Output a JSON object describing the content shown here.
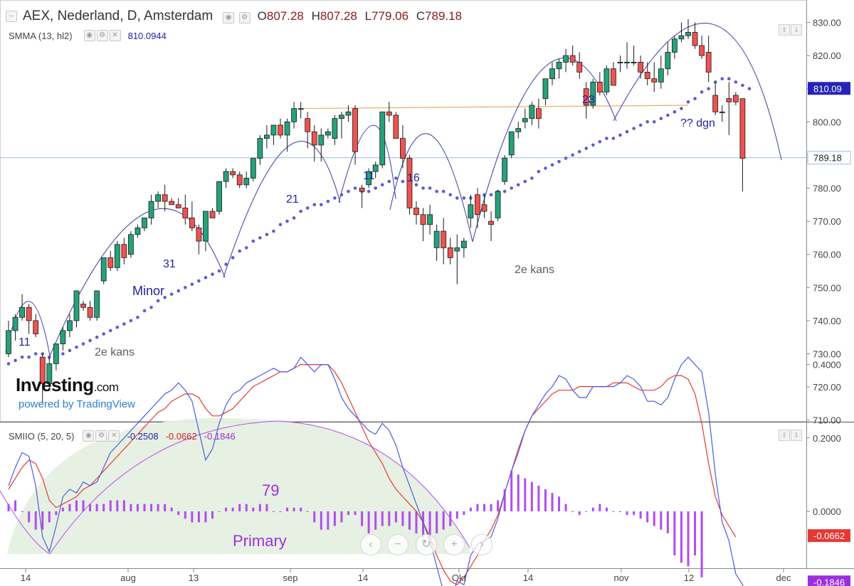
{
  "header": {
    "title": "AEX, Nederland, D, Amsterdam",
    "open_label": "O",
    "open": "807.28",
    "high_label": "H",
    "high": "807.28",
    "low_label": "L",
    "low": "779.06",
    "close_label": "C",
    "close": "789.18"
  },
  "smma": {
    "label": "SMMA (13, hl2)",
    "value": "810.0944",
    "color": "#5b5bd6"
  },
  "smiio": {
    "label": "SMIIO (5, 20, 5)",
    "v1": "-0.2508",
    "v2": "-0.0662",
    "v3": "-0.1846"
  },
  "watermark": {
    "brand": "Investing",
    "brand_suffix": ".com",
    "powered": "powered by TradingView"
  },
  "price_badges": {
    "smma": "810.09",
    "last": "789.18"
  },
  "osc_badges": {
    "red": "-0.0662",
    "purple": "-0.1846",
    "blue": "-0.2508"
  },
  "icons": [
    "collapse-icon",
    "eye-icon",
    "gear-icon",
    "close-icon",
    "arrow-up-icon",
    "arrow-down-icon",
    "chevron-left-icon",
    "zoom-out-icon",
    "reset-icon",
    "zoom-in-icon",
    "chevron-right-icon"
  ],
  "colors": {
    "up": "#26a17b",
    "down": "#ef5350",
    "smma": "#5b5bd6",
    "arc": "#4a4aa8",
    "osc_blue": "#4a5ce0",
    "osc_red": "#e53935",
    "hist": "#b24cf0",
    "resistance": "#f0b070"
  },
  "chart_data": {
    "type": "candlestick",
    "title": "AEX, Nederland, D, Amsterdam",
    "price_axis": {
      "range": [
        710,
        834
      ],
      "ticks": [
        "830.00",
        "820.00",
        "810.00",
        "800.00",
        "790.00",
        "780.00",
        "770.00",
        "760.00",
        "750.00",
        "740.00",
        "730.00",
        "720.00",
        "710.00"
      ]
    },
    "x_axis": {
      "ticks": [
        "14",
        "aug",
        "13",
        "sep",
        "14",
        "Okt",
        "14",
        "nov",
        "12",
        "dec"
      ]
    },
    "candles": [
      [
        730,
        740,
        729,
        737
      ],
      [
        737,
        742,
        734,
        741
      ],
      [
        741,
        748,
        740,
        744
      ],
      [
        744,
        745,
        736,
        740
      ],
      [
        740,
        742,
        735,
        736
      ],
      [
        729,
        730,
        715,
        721
      ],
      [
        721,
        729,
        719,
        727
      ],
      [
        727,
        733,
        725,
        733
      ],
      [
        733,
        738,
        731,
        737
      ],
      [
        737,
        742,
        735,
        740
      ],
      [
        740,
        749,
        738,
        749
      ],
      [
        745,
        746,
        743,
        744
      ],
      [
        744,
        746,
        740,
        741
      ],
      [
        741,
        749,
        740,
        749
      ],
      [
        752,
        759,
        751,
        759
      ],
      [
        759,
        761,
        755,
        756
      ],
      [
        756,
        764,
        755,
        763
      ],
      [
        763,
        765,
        757,
        759
      ],
      [
        760,
        767,
        759,
        766
      ],
      [
        766,
        769,
        765,
        768
      ],
      [
        768,
        771,
        767,
        771
      ],
      [
        771,
        778,
        769,
        776
      ],
      [
        776,
        779,
        774,
        778
      ],
      [
        778,
        781,
        773,
        776
      ],
      [
        776,
        777,
        775,
        775
      ],
      [
        775,
        777,
        774,
        774
      ],
      [
        774,
        778,
        769,
        771
      ],
      [
        771,
        776,
        767,
        768
      ],
      [
        768,
        769,
        760,
        764
      ],
      [
        764,
        773,
        761,
        773
      ],
      [
        773,
        774,
        771,
        771
      ],
      [
        773,
        782,
        772,
        782
      ],
      [
        782,
        786,
        780,
        785
      ],
      [
        785,
        786,
        783,
        784
      ],
      [
        784,
        785,
        780,
        781
      ],
      [
        781,
        785,
        780,
        783
      ],
      [
        783,
        789,
        782,
        789
      ],
      [
        789,
        796,
        787,
        795
      ],
      [
        795,
        799,
        792,
        796
      ],
      [
        796,
        799,
        793,
        799
      ],
      [
        799,
        801,
        795,
        796
      ],
      [
        796,
        801,
        791,
        800
      ],
      [
        800,
        806,
        798,
        804
      ],
      [
        804,
        806,
        801,
        804
      ],
      [
        801,
        803,
        792,
        797
      ],
      [
        797,
        799,
        788,
        793
      ],
      [
        793,
        798,
        788,
        796
      ],
      [
        796,
        798,
        795,
        797
      ],
      [
        795,
        802,
        793,
        801
      ],
      [
        801,
        803,
        795,
        802
      ],
      [
        802,
        805,
        800,
        803
      ],
      [
        804,
        805,
        787,
        791
      ],
      [
        780,
        781,
        774,
        779
      ],
      [
        781,
        786,
        780,
        785
      ],
      [
        785,
        788,
        783,
        787
      ],
      [
        787,
        803,
        786,
        803
      ],
      [
        803,
        806,
        800,
        802
      ],
      [
        802,
        803,
        795,
        795
      ],
      [
        795,
        799,
        786,
        789
      ],
      [
        789,
        790,
        772,
        774
      ],
      [
        774,
        776,
        769,
        772
      ],
      [
        772,
        774,
        764,
        769
      ],
      [
        769,
        775,
        766,
        772
      ],
      [
        762,
        769,
        758,
        767
      ],
      [
        767,
        771,
        757,
        762
      ],
      [
        762,
        765,
        757,
        759
      ],
      [
        761,
        766,
        751,
        762
      ],
      [
        762,
        765,
        759,
        764
      ],
      [
        771,
        778,
        768,
        775
      ],
      [
        778,
        780,
        768,
        772
      ],
      [
        775,
        778,
        771,
        773
      ],
      [
        770,
        773,
        764,
        769
      ],
      [
        771,
        779,
        770,
        779
      ],
      [
        782,
        790,
        781,
        789
      ],
      [
        790,
        797,
        789,
        797
      ],
      [
        797,
        800,
        795,
        798
      ],
      [
        800,
        804,
        798,
        801
      ],
      [
        801,
        806,
        799,
        805
      ],
      [
        804,
        807,
        798,
        801
      ],
      [
        807,
        813,
        805,
        813
      ],
      [
        813,
        818,
        811,
        816
      ],
      [
        816,
        819,
        813,
        818
      ],
      [
        818,
        822,
        815,
        820
      ],
      [
        820,
        823,
        817,
        818
      ],
      [
        818,
        821,
        813,
        815
      ],
      [
        810,
        812,
        801,
        805
      ],
      [
        805,
        813,
        804,
        812
      ],
      [
        812,
        815,
        808,
        809
      ],
      [
        809,
        817,
        808,
        816
      ],
      [
        816,
        818,
        811,
        811
      ],
      [
        818,
        820,
        815,
        818
      ],
      [
        818,
        824,
        816,
        818
      ],
      [
        818,
        823,
        817,
        818
      ],
      [
        818,
        820,
        813,
        815
      ],
      [
        815,
        818,
        811,
        813
      ],
      [
        813,
        818,
        809,
        812
      ],
      [
        812,
        820,
        810,
        816
      ],
      [
        816,
        824,
        814,
        821
      ],
      [
        821,
        826,
        819,
        825
      ],
      [
        825,
        830,
        824,
        826
      ],
      [
        826,
        831,
        825,
        827
      ],
      [
        827,
        830,
        822,
        823
      ],
      [
        823,
        826,
        819,
        820
      ],
      [
        821,
        826,
        812,
        815
      ],
      [
        808,
        812,
        802,
        803
      ],
      [
        803,
        805,
        800,
        803
      ],
      [
        807,
        812,
        796,
        806
      ],
      [
        808,
        809,
        805,
        806
      ],
      [
        807,
        807,
        779,
        789
      ]
    ],
    "smma_series": [
      727,
      728,
      729,
      729,
      730,
      730,
      729,
      729,
      730,
      731,
      732,
      733,
      734,
      735,
      736,
      737,
      738,
      739,
      740,
      741,
      743,
      744,
      746,
      747,
      748,
      749,
      750,
      751,
      752,
      753,
      754,
      755,
      757,
      759,
      761,
      762,
      764,
      765,
      766,
      767,
      769,
      770,
      771,
      773,
      774,
      775,
      775,
      776,
      777,
      778,
      779,
      780,
      779,
      779,
      780,
      781,
      782,
      783,
      782,
      781,
      781,
      780,
      780,
      779,
      779,
      778,
      777,
      777,
      777,
      777,
      778,
      778,
      779,
      779,
      780,
      781,
      782,
      783,
      785,
      786,
      787,
      788,
      789,
      790,
      791,
      792,
      793,
      794,
      795,
      795,
      796,
      797,
      798,
      799,
      800,
      800,
      801,
      802,
      803,
      804,
      806,
      807,
      809,
      810,
      812,
      813,
      813,
      812,
      811,
      810
    ],
    "resistance_line": [
      804,
      805
    ],
    "annotations": [
      "11",
      "31",
      "Minor",
      "2e kans",
      "21",
      "11",
      "16",
      "2e kans",
      "23",
      "?? dgn",
      "79",
      "Primary"
    ],
    "oscillator": {
      "name": "SMIIO (5, 20, 5)",
      "range": [
        -0.26,
        0.42
      ],
      "ticks": [
        "0.4000",
        "0.2000",
        "0.0000"
      ],
      "smi": [
        0.07,
        0.12,
        0.16,
        0.15,
        0.07,
        -0.07,
        -0.11,
        -0.04,
        0.04,
        0.06,
        0.05,
        0.08,
        0.07,
        0.08,
        0.12,
        0.16,
        0.18,
        0.2,
        0.22,
        0.24,
        0.26,
        0.28,
        0.3,
        0.32,
        0.33,
        0.35,
        0.33,
        0.3,
        0.22,
        0.14,
        0.17,
        0.24,
        0.29,
        0.32,
        0.33,
        0.35,
        0.36,
        0.37,
        0.38,
        0.39,
        0.38,
        0.38,
        0.39,
        0.42,
        0.4,
        0.38,
        0.4,
        0.4,
        0.36,
        0.31,
        0.28,
        0.26,
        0.24,
        0.22,
        0.21,
        0.24,
        0.22,
        0.18,
        0.12,
        0.07,
        0.02,
        -0.03,
        -0.08,
        -0.15,
        -0.22,
        -0.24,
        -0.19,
        -0.2,
        -0.12,
        -0.09,
        -0.08,
        -0.07,
        -0.02,
        0.05,
        0.11,
        0.16,
        0.22,
        0.26,
        0.29,
        0.32,
        0.34,
        0.37,
        0.36,
        0.33,
        0.31,
        0.31,
        0.34,
        0.34,
        0.34,
        0.34,
        0.35,
        0.37,
        0.36,
        0.34,
        0.3,
        0.3,
        0.29,
        0.31,
        0.36,
        0.4,
        0.42,
        0.4,
        0.38,
        0.27,
        0.1,
        -0.03,
        -0.08,
        -0.17,
        -0.2,
        -0.25
      ],
      "signal": [
        0.06,
        0.09,
        0.12,
        0.14,
        0.13,
        0.09,
        0.03,
        0.01,
        0.02,
        0.03,
        0.04,
        0.06,
        0.07,
        0.09,
        0.11,
        0.13,
        0.15,
        0.17,
        0.19,
        0.21,
        0.23,
        0.25,
        0.27,
        0.28,
        0.3,
        0.31,
        0.32,
        0.32,
        0.31,
        0.28,
        0.26,
        0.26,
        0.27,
        0.28,
        0.3,
        0.32,
        0.34,
        0.35,
        0.36,
        0.37,
        0.38,
        0.38,
        0.39,
        0.4,
        0.4,
        0.4,
        0.4,
        0.4,
        0.38,
        0.35,
        0.31,
        0.27,
        0.23,
        0.19,
        0.16,
        0.13,
        0.09,
        0.06,
        0.04,
        0.02,
        0.0,
        -0.03,
        -0.07,
        -0.12,
        -0.16,
        -0.19,
        -0.2,
        -0.18,
        -0.15,
        -0.12,
        -0.08,
        -0.05,
        -0.01,
        0.05,
        0.11,
        0.17,
        0.22,
        0.26,
        0.28,
        0.3,
        0.32,
        0.33,
        0.33,
        0.33,
        0.34,
        0.34,
        0.34,
        0.34,
        0.34,
        0.35,
        0.35,
        0.35,
        0.34,
        0.33,
        0.33,
        0.33,
        0.34,
        0.36,
        0.37,
        0.37,
        0.36,
        0.32,
        0.24,
        0.13,
        0.04,
        -0.01,
        -0.04,
        -0.07
      ],
      "hist": [
        0.02,
        0.03,
        0.0,
        -0.03,
        -0.05,
        -0.05,
        -0.03,
        -0.01,
        0.01,
        0.02,
        0.03,
        0.03,
        0.02,
        0.02,
        0.02,
        0.03,
        0.03,
        0.03,
        0.02,
        0.02,
        0.02,
        0.02,
        0.02,
        0.02,
        0.01,
        -0.01,
        -0.02,
        -0.03,
        -0.03,
        -0.03,
        -0.02,
        0.0,
        0.01,
        0.01,
        0.02,
        0.02,
        0.01,
        0.02,
        0.02,
        0.0,
        0.0,
        0.01,
        0.01,
        0.01,
        0.0,
        -0.03,
        -0.05,
        -0.05,
        -0.04,
        -0.03,
        -0.01,
        -0.01,
        -0.04,
        -0.06,
        -0.05,
        -0.04,
        -0.04,
        -0.03,
        -0.04,
        -0.05,
        -0.06,
        -0.07,
        -0.07,
        -0.06,
        -0.05,
        -0.04,
        -0.02,
        -0.01,
        0.01,
        0.02,
        0.02,
        0.02,
        0.03,
        0.06,
        0.11,
        0.1,
        0.09,
        0.08,
        0.07,
        0.06,
        0.05,
        0.04,
        0.02,
        0.0,
        -0.01,
        0.0,
        0.01,
        0.02,
        0.01,
        0.0,
        0.0,
        -0.01,
        -0.01,
        -0.02,
        -0.03,
        -0.04,
        -0.05,
        -0.06,
        -0.12,
        -0.14,
        -0.15,
        -0.12,
        -0.18
      ]
    }
  }
}
